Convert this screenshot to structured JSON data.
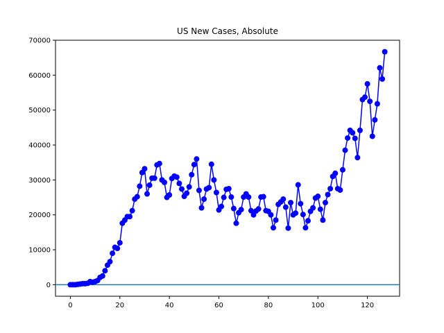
{
  "chart_data": {
    "type": "line",
    "title": "US New Cases, Absolute",
    "xlabel": "",
    "ylabel": "",
    "xlim": [
      -6,
      133
    ],
    "ylim": [
      -3300,
      70000
    ],
    "xticks": [
      0,
      20,
      40,
      60,
      80,
      100,
      120
    ],
    "yticks": [
      0,
      10000,
      20000,
      30000,
      40000,
      50000,
      60000,
      70000
    ],
    "grid": false,
    "series_color": "#0000ff",
    "baseline_color": "#1f77b4",
    "baseline_y": 0,
    "x": [
      0,
      1,
      2,
      3,
      4,
      5,
      6,
      7,
      8,
      9,
      10,
      11,
      12,
      13,
      14,
      15,
      16,
      17,
      18,
      19,
      20,
      21,
      22,
      23,
      24,
      25,
      26,
      27,
      28,
      29,
      30,
      31,
      32,
      33,
      34,
      35,
      36,
      37,
      38,
      39,
      40,
      41,
      42,
      43,
      44,
      45,
      46,
      47,
      48,
      49,
      50,
      51,
      52,
      53,
      54,
      55,
      56,
      57,
      58,
      59,
      60,
      61,
      62,
      63,
      64,
      65,
      66,
      67,
      68,
      69,
      70,
      71,
      72,
      73,
      74,
      75,
      76,
      77,
      78,
      79,
      80,
      81,
      82,
      83,
      84,
      85,
      86,
      87,
      88,
      89,
      90,
      91,
      92,
      93,
      94,
      95,
      96,
      97,
      98,
      99,
      100,
      101,
      102,
      103,
      104,
      105,
      106,
      107,
      108,
      109,
      110,
      111,
      112,
      113,
      114,
      115,
      116,
      117,
      118,
      119,
      120,
      121,
      122,
      123,
      124,
      125,
      126,
      127
    ],
    "values": [
      0,
      0,
      0,
      100,
      200,
      300,
      300,
      400,
      900,
      700,
      900,
      1200,
      2100,
      2500,
      4000,
      5600,
      6600,
      9000,
      10700,
      10400,
      12000,
      17600,
      18500,
      19500,
      19500,
      21200,
      24500,
      25200,
      28200,
      32100,
      33200,
      26000,
      28500,
      30500,
      30500,
      34300,
      34700,
      30000,
      29300,
      25000,
      25700,
      30400,
      31100,
      30800,
      29000,
      27400,
      25300,
      26200,
      28000,
      31500,
      34400,
      36000,
      27000,
      22000,
      24500,
      27400,
      27800,
      34500,
      30000,
      26400,
      21400,
      22400,
      25000,
      27300,
      27500,
      25100,
      21800,
      17600,
      20600,
      21500,
      25100,
      26000,
      25100,
      21200,
      20000,
      21100,
      21700,
      25100,
      25200,
      21200,
      21000,
      20000,
      16300,
      18500,
      23000,
      23700,
      24500,
      22200,
      16200,
      23500,
      20000,
      20500,
      28600,
      23200,
      20100,
      16300,
      18300,
      21000,
      22000,
      24800,
      25300,
      21600,
      18500,
      23500,
      25800,
      27500,
      31000,
      31900,
      27500,
      27100,
      32900,
      38500,
      42000,
      44200,
      43500,
      41900,
      36400,
      44200,
      53000,
      53700,
      57500,
      52500,
      42500,
      47200,
      51800,
      62100,
      58900,
      66700
    ]
  }
}
